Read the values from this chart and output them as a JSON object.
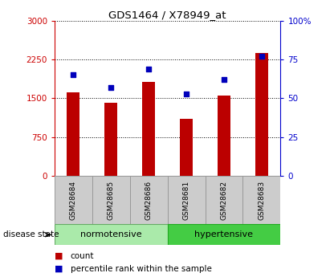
{
  "title": "GDS1464 / X78949_at",
  "samples": [
    "GSM28684",
    "GSM28685",
    "GSM28686",
    "GSM28681",
    "GSM28682",
    "GSM28683"
  ],
  "counts": [
    1620,
    1420,
    1820,
    1100,
    1560,
    2380
  ],
  "percentiles": [
    65,
    57,
    69,
    53,
    62,
    77
  ],
  "bar_color": "#bb0000",
  "percentile_color": "#0000bb",
  "normotensive_color": "#aaeaaa",
  "hypertensive_color": "#44cc44",
  "label_bg_color": "#cccccc",
  "left_ylim": [
    0,
    3000
  ],
  "right_ylim": [
    0,
    100
  ],
  "left_yticks": [
    0,
    750,
    1500,
    2250,
    3000
  ],
  "right_yticks": [
    0,
    25,
    50,
    75,
    100
  ],
  "left_ytick_labels": [
    "0",
    "750",
    "1500",
    "2250",
    "3000"
  ],
  "right_ytick_labels": [
    "0",
    "25",
    "50",
    "75",
    "100%"
  ],
  "left_tick_color": "#cc0000",
  "right_tick_color": "#0000cc",
  "background_color": "#ffffff",
  "plot_bg_color": "#ffffff"
}
